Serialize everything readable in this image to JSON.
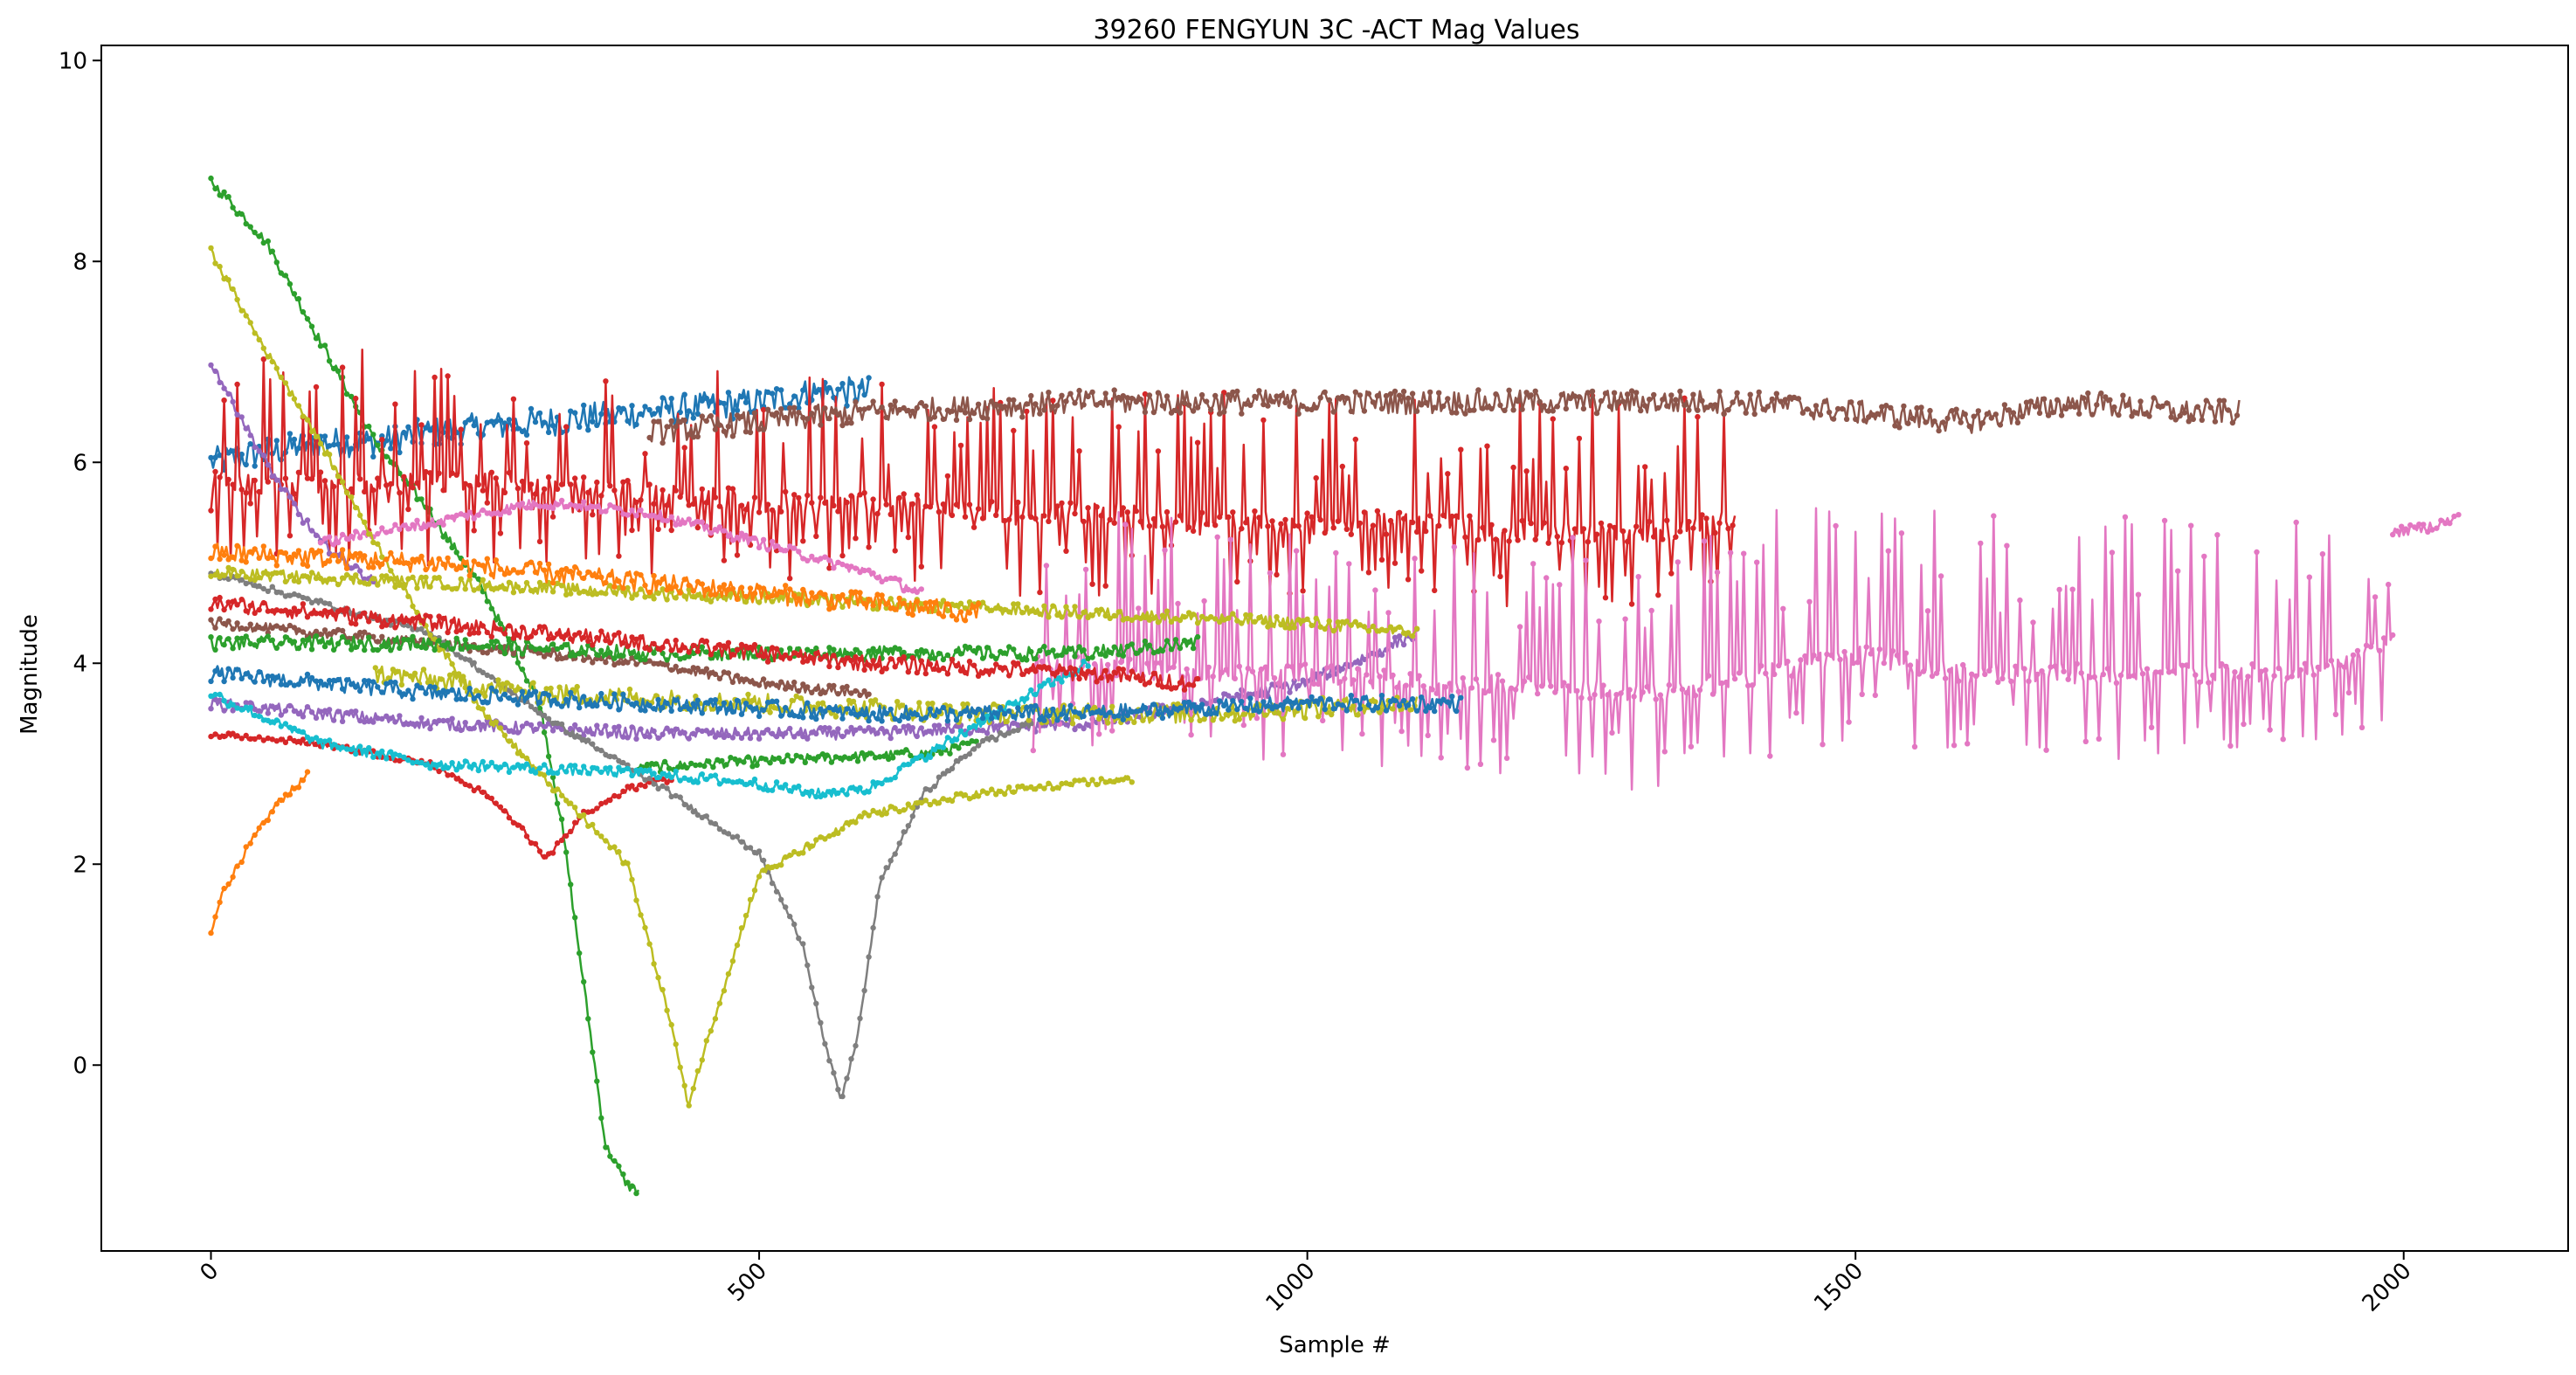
{
  "chart_data": {
    "type": "line",
    "title": "39260 FENGYUN 3C -ACT Mag Values",
    "xlabel": "Sample #",
    "ylabel": "Magnitude",
    "xlim": [
      -100,
      2150
    ],
    "ylim": [
      -1.85,
      10.15
    ],
    "x_ticks": [
      0,
      500,
      1000,
      1500,
      2000
    ],
    "x_tick_labels": [
      "0",
      "500",
      "1000",
      "1500",
      "2000"
    ],
    "x_tick_rotation_deg": -45,
    "y_ticks": [
      0,
      2,
      4,
      6,
      8,
      10
    ],
    "y_tick_labels": [
      "0",
      "2",
      "4",
      "6",
      "8",
      "10"
    ],
    "grid": false,
    "legend": "none",
    "markers": true,
    "colors": [
      "#1f77b4",
      "#ff7f0e",
      "#2ca02c",
      "#d62728",
      "#9467bd",
      "#8c564b",
      "#e377c2",
      "#7f7f7f",
      "#bcbd22",
      "#17becf"
    ],
    "series": [
      {
        "color": "#1f77b4",
        "x": [
          0,
          50,
          100,
          150,
          200,
          300,
          400,
          500,
          550,
          600
        ],
        "y": [
          6.0,
          6.1,
          6.2,
          6.2,
          6.3,
          6.4,
          6.5,
          6.6,
          6.7,
          6.7
        ],
        "noise": 0.15
      },
      {
        "color": "#ff7f0e",
        "x": [
          0,
          10,
          30,
          60,
          90
        ],
        "y": [
          1.3,
          1.7,
          2.1,
          2.6,
          2.9
        ],
        "noise": 0.04
      },
      {
        "color": "#2ca02c",
        "x": [
          0,
          50,
          100,
          150,
          200,
          250,
          300,
          320,
          340,
          360,
          380,
          390
        ],
        "y": [
          8.8,
          8.2,
          7.2,
          6.2,
          5.5,
          4.7,
          3.6,
          2.4,
          0.8,
          -0.8,
          -1.2,
          -1.25
        ],
        "noise": 0.05
      },
      {
        "color": "#2ca02c",
        "x": [
          390,
          450,
          550,
          650,
          700
        ],
        "y": [
          2.95,
          3.0,
          3.05,
          3.1,
          3.2
        ],
        "noise": 0.05
      },
      {
        "color": "#d62728",
        "x": [
          0,
          100,
          150,
          200,
          250,
          280,
          305,
          340,
          380,
          420
        ],
        "y": [
          3.3,
          3.2,
          3.1,
          3.0,
          2.7,
          2.4,
          2.05,
          2.5,
          2.75,
          2.85
        ],
        "noise": 0.03
      },
      {
        "color": "#d62728",
        "x": [
          0,
          100,
          200,
          300,
          400,
          500,
          600,
          700,
          800,
          900,
          1000,
          1100,
          1200,
          1300,
          1390
        ],
        "y": [
          5.8,
          5.8,
          5.8,
          5.8,
          5.7,
          5.6,
          5.6,
          5.5,
          5.5,
          5.4,
          5.4,
          5.4,
          5.3,
          5.3,
          5.4
        ],
        "noise": 0.12,
        "spikes": 1.1,
        "spikeEvery": 3
      },
      {
        "color": "#9467bd",
        "x": [
          0,
          20,
          50,
          80,
          100,
          150
        ],
        "y": [
          7.0,
          6.6,
          6.0,
          5.5,
          5.2,
          4.8
        ],
        "noise": 0.05
      },
      {
        "color": "#9467bd",
        "x": [
          0,
          200,
          400,
          600,
          800,
          1000,
          1100
        ],
        "y": [
          3.6,
          3.4,
          3.3,
          3.3,
          3.4,
          3.8,
          4.3
        ],
        "noise": 0.06
      },
      {
        "color": "#8c564b",
        "x": [
          400,
          600,
          800,
          1000,
          1200,
          1400,
          1500,
          1600,
          1700,
          1800,
          1850
        ],
        "y": [
          6.3,
          6.5,
          6.6,
          6.6,
          6.6,
          6.6,
          6.5,
          6.4,
          6.6,
          6.5,
          6.5
        ],
        "noise": 0.12
      },
      {
        "color": "#8c564b",
        "x": [
          0,
          200,
          400,
          500,
          600
        ],
        "y": [
          4.4,
          4.2,
          4.0,
          3.8,
          3.7
        ],
        "noise": 0.05
      },
      {
        "color": "#e377c2",
        "x": [
          100,
          200,
          300,
          400,
          500,
          600,
          650
        ],
        "y": [
          5.2,
          5.4,
          5.6,
          5.5,
          5.2,
          4.9,
          4.7
        ],
        "noise": 0.05
      },
      {
        "color": "#e377c2",
        "x": [
          750,
          900,
          1000,
          1100,
          1200,
          1300,
          1380,
          1500,
          1600,
          1700,
          1800,
          1900,
          1990
        ],
        "y": [
          4.0,
          3.9,
          3.9,
          3.8,
          3.8,
          3.7,
          3.8,
          4.1,
          3.9,
          3.9,
          3.9,
          3.9,
          4.2
        ],
        "noise": 0.1,
        "spikes": 1.3,
        "spikeEvery": 3
      },
      {
        "color": "#e377c2",
        "x": [
          1990,
          2020,
          2050
        ],
        "y": [
          5.3,
          5.35,
          5.45
        ],
        "noise": 0.05
      },
      {
        "color": "#7f7f7f",
        "x": [
          0,
          200,
          300,
          420,
          500,
          540,
          560,
          575,
          590,
          610,
          650,
          700,
          750
        ],
        "y": [
          4.9,
          4.3,
          3.5,
          2.7,
          2.1,
          1.2,
          0.2,
          -0.35,
          0.3,
          1.8,
          2.7,
          3.2,
          3.4
        ],
        "noise": 0.03
      },
      {
        "color": "#bcbd22",
        "x": [
          0,
          40,
          100,
          150,
          200,
          250,
          300,
          380,
          420,
          435,
          460,
          500,
          600,
          700,
          840
        ],
        "y": [
          8.1,
          7.3,
          6.2,
          5.2,
          4.3,
          3.5,
          2.9,
          2.0,
          0.4,
          -0.4,
          0.5,
          1.9,
          2.5,
          2.7,
          2.85
        ],
        "noise": 0.04
      },
      {
        "color": "#bcbd22",
        "x": [
          0,
          200,
          400,
          600,
          800,
          1000,
          1100
        ],
        "y": [
          4.9,
          4.8,
          4.7,
          4.6,
          4.5,
          4.4,
          4.3
        ],
        "noise": 0.06
      },
      {
        "color": "#bcbd22",
        "x": [
          150,
          300,
          500,
          700,
          900,
          1100
        ],
        "y": [
          3.9,
          3.7,
          3.6,
          3.5,
          3.5,
          3.6
        ],
        "noise": 0.1
      },
      {
        "color": "#17becf",
        "x": [
          0,
          100,
          200,
          300,
          400,
          500,
          550,
          600,
          700,
          800
        ],
        "y": [
          3.7,
          3.2,
          3.0,
          2.95,
          2.9,
          2.8,
          2.7,
          2.75,
          3.4,
          4.0
        ],
        "noise": 0.05
      },
      {
        "color": "#ff7f0e",
        "x": [
          0,
          200,
          400,
          600,
          700
        ],
        "y": [
          5.1,
          5.0,
          4.8,
          4.6,
          4.5
        ],
        "noise": 0.1
      },
      {
        "color": "#1f77b4",
        "x": [
          0,
          200,
          400,
          600,
          800,
          1000,
          1140
        ],
        "y": [
          3.9,
          3.7,
          3.6,
          3.5,
          3.5,
          3.6,
          3.6
        ],
        "noise": 0.08
      },
      {
        "color": "#2ca02c",
        "x": [
          0,
          200,
          400,
          600,
          800,
          900
        ],
        "y": [
          4.2,
          4.2,
          4.1,
          4.1,
          4.1,
          4.2
        ],
        "noise": 0.07
      },
      {
        "color": "#d62728",
        "x": [
          0,
          200,
          400,
          600,
          800,
          900
        ],
        "y": [
          4.6,
          4.4,
          4.2,
          4.0,
          3.9,
          3.8
        ],
        "noise": 0.08
      }
    ]
  }
}
